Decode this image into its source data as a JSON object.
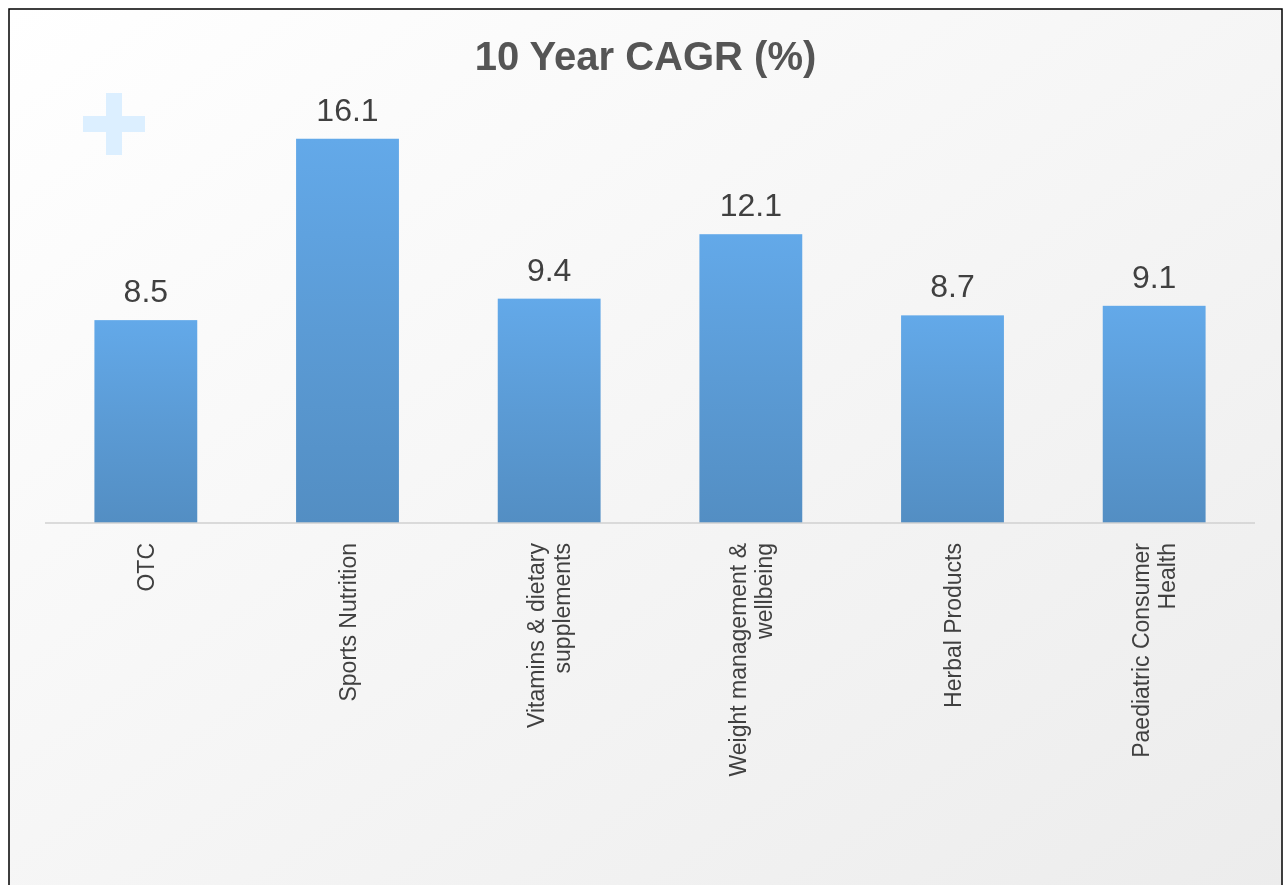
{
  "chart_data": {
    "type": "bar",
    "title": "10 Year CAGR (%)",
    "categories": [
      "OTC",
      "Sports Nutrition",
      "Vitamins & dietary supplements",
      "Weight management & wellbeing",
      "Herbal Products",
      "Paediatric Consumer Health"
    ],
    "values": [
      8.5,
      16.1,
      9.4,
      12.1,
      8.7,
      9.1
    ],
    "color": "#5b9bd5",
    "data_labels": true
  }
}
